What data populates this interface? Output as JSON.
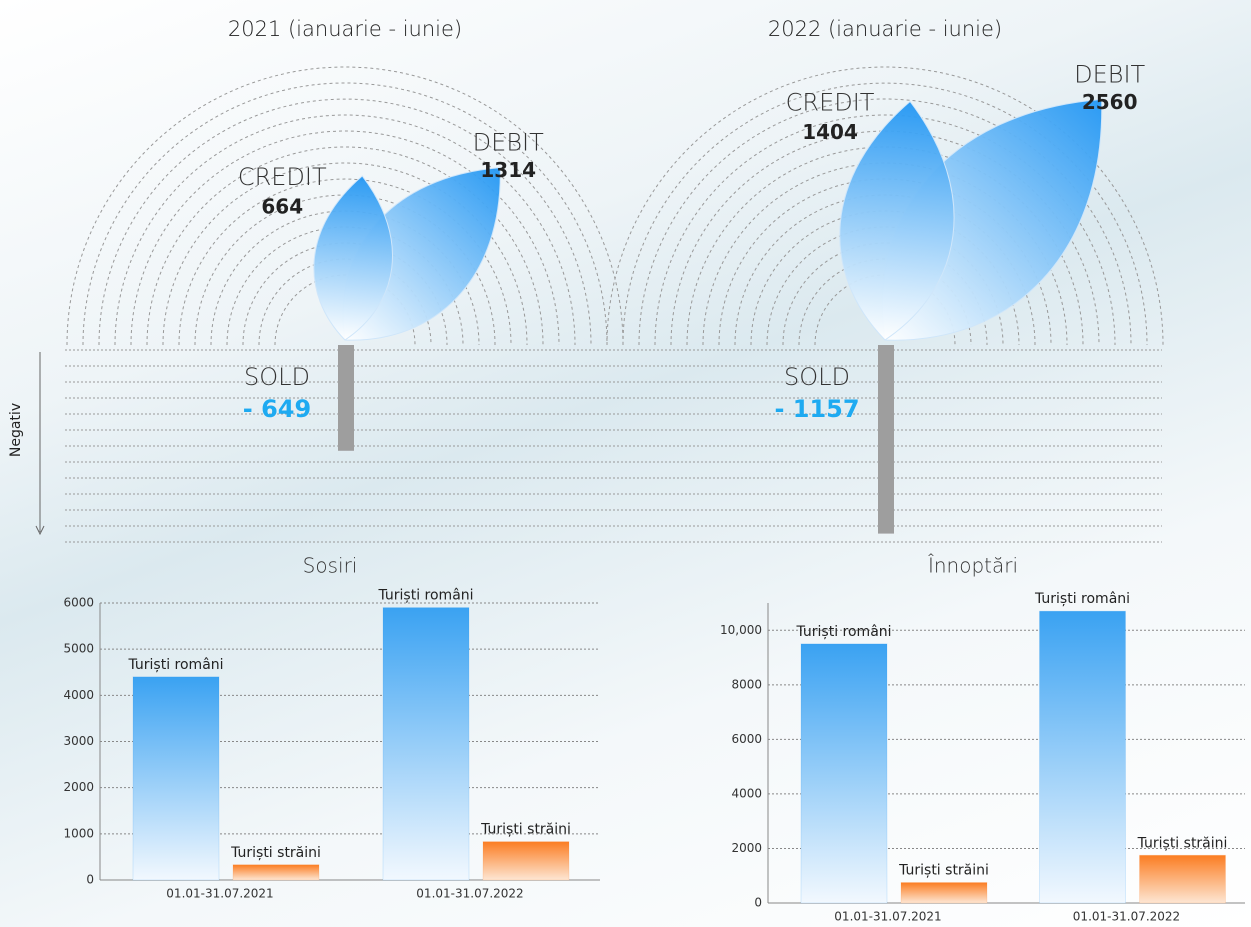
{
  "chart_data": [
    {
      "type": "leaf",
      "axis_label": "Negativ",
      "categories": [
        "2021 (ianuarie - iunie)",
        "2022 (ianuarie - iunie)"
      ],
      "series": [
        {
          "name": "CREDIT",
          "color": "#2196f3",
          "values": [
            664,
            1404
          ]
        },
        {
          "name": "DEBIT",
          "color": "#2196f3",
          "values": [
            1314,
            2560
          ]
        },
        {
          "name": "SOLD",
          "color": "#9e9e9e",
          "values": [
            -649,
            -1157
          ],
          "value_labels": [
            "- 649",
            "- 1157"
          ]
        }
      ]
    },
    {
      "type": "bar",
      "title": "Sosiri",
      "categories": [
        "01.01-31.07.2021",
        "01.01-31.07.2022"
      ],
      "series": [
        {
          "name": "Turiști români",
          "color": "#2196f3",
          "values": [
            4400,
            5900
          ]
        },
        {
          "name": "Turiști străini",
          "color": "#ff7f27",
          "values": [
            330,
            830
          ]
        }
      ],
      "ylim": [
        0,
        6000
      ],
      "yticks": [
        0,
        1000,
        2000,
        3000,
        4000,
        5000,
        6000
      ],
      "grid": true
    },
    {
      "type": "bar",
      "title": "Înnoptări",
      "categories": [
        "01.01-31.07.2021",
        "01.01-31.07.2022"
      ],
      "series": [
        {
          "name": "Turiști români",
          "color": "#2196f3",
          "values": [
            9500,
            10700
          ]
        },
        {
          "name": "Turiști străini",
          "color": "#ff7f27",
          "values": [
            750,
            1750
          ]
        }
      ],
      "ylim": [
        0,
        11000
      ],
      "yticks": [
        0,
        2000,
        4000,
        6000,
        8000,
        {
          "value": 10000,
          "label": "10,000"
        }
      ],
      "grid": true
    }
  ]
}
